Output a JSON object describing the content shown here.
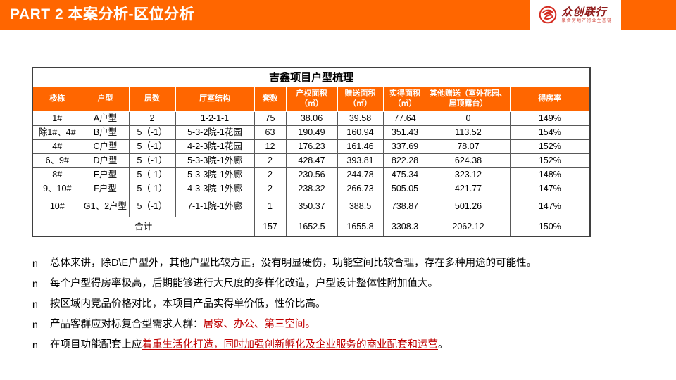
{
  "header": {
    "title": "PART 2 本案分析-区位分析",
    "accent_color": "#FF6600",
    "logo": {
      "brand": "众创联行",
      "tagline": "聚合房地产行业生态链"
    }
  },
  "table": {
    "title": "吉鑫项目户型梳理",
    "columns": [
      "楼栋",
      "户型",
      "层数",
      "厅室结构",
      "套数",
      "产权面积（㎡）",
      "赠送面积（㎡）",
      "实得面积（㎡）",
      "其他赠送（室外花园、屋顶露台）",
      "得房率"
    ],
    "rows": [
      [
        "1#",
        "A户型",
        "2",
        "1-2-1-1",
        "75",
        "38.06",
        "39.58",
        "77.64",
        "0",
        "149%"
      ],
      [
        "除1#、4#",
        "B户型",
        "5（-1）",
        "5-3-2院-1花园",
        "63",
        "190.49",
        "160.94",
        "351.43",
        "113.52",
        "154%"
      ],
      [
        "4#",
        "C户型",
        "5（-1）",
        "4-2-3院-1花园",
        "12",
        "176.23",
        "161.46",
        "337.69",
        "78.07",
        "152%"
      ],
      [
        "6、9#",
        "D户型",
        "5（-1）",
        "5-3-3院-1外廊",
        "2",
        "428.47",
        "393.81",
        "822.28",
        "624.38",
        "152%"
      ],
      [
        "8#",
        "E户型",
        "5（-1）",
        "5-3-3院-1外廊",
        "2",
        "230.56",
        "244.78",
        "475.34",
        "323.12",
        "148%"
      ],
      [
        "9、10#",
        "F户型",
        "5（-1）",
        "4-3-3院-1外廊",
        "2",
        "238.32",
        "266.73",
        "505.05",
        "421.77",
        "147%"
      ],
      [
        "10#",
        "G1、2户型",
        "5（-1）",
        "7-1-1院-1外廊",
        "1",
        "350.37",
        "388.5",
        "738.87",
        "501.26",
        "147%"
      ]
    ],
    "total_row": {
      "label": "合计",
      "values": [
        "157",
        "1652.5",
        "1655.8",
        "3308.3",
        "2062.12",
        "150%"
      ]
    }
  },
  "bullets": [
    {
      "marker": "n",
      "segments": [
        {
          "text": "总体来讲，除D\\E户型外，其他户型比较方正，没有明显硬伤，功能空间比较合理，存在多种用途的可能性。",
          "red": false
        }
      ]
    },
    {
      "marker": "n",
      "segments": [
        {
          "text": "每个户型得房率极高，后期能够进行大尺度的多样化改造，户型设计整体性附加值大。",
          "red": false
        }
      ]
    },
    {
      "marker": "n",
      "segments": [
        {
          "text": "按区域内竞品价格对比，本项目产品实得单价低，性价比高。",
          "red": false
        }
      ]
    },
    {
      "marker": "n",
      "segments": [
        {
          "text": "产品客群应对标复合型需求人群：",
          "red": false
        },
        {
          "text": "居家、办公、第三空间。",
          "red": true
        }
      ]
    },
    {
      "marker": "n",
      "segments": [
        {
          "text": "在项目功能配套上应",
          "red": false
        },
        {
          "text": "着重生活化打造，同时加强创新孵化及企业服务的商业配套和运营",
          "red": true
        },
        {
          "text": "。",
          "red": false
        }
      ]
    }
  ]
}
